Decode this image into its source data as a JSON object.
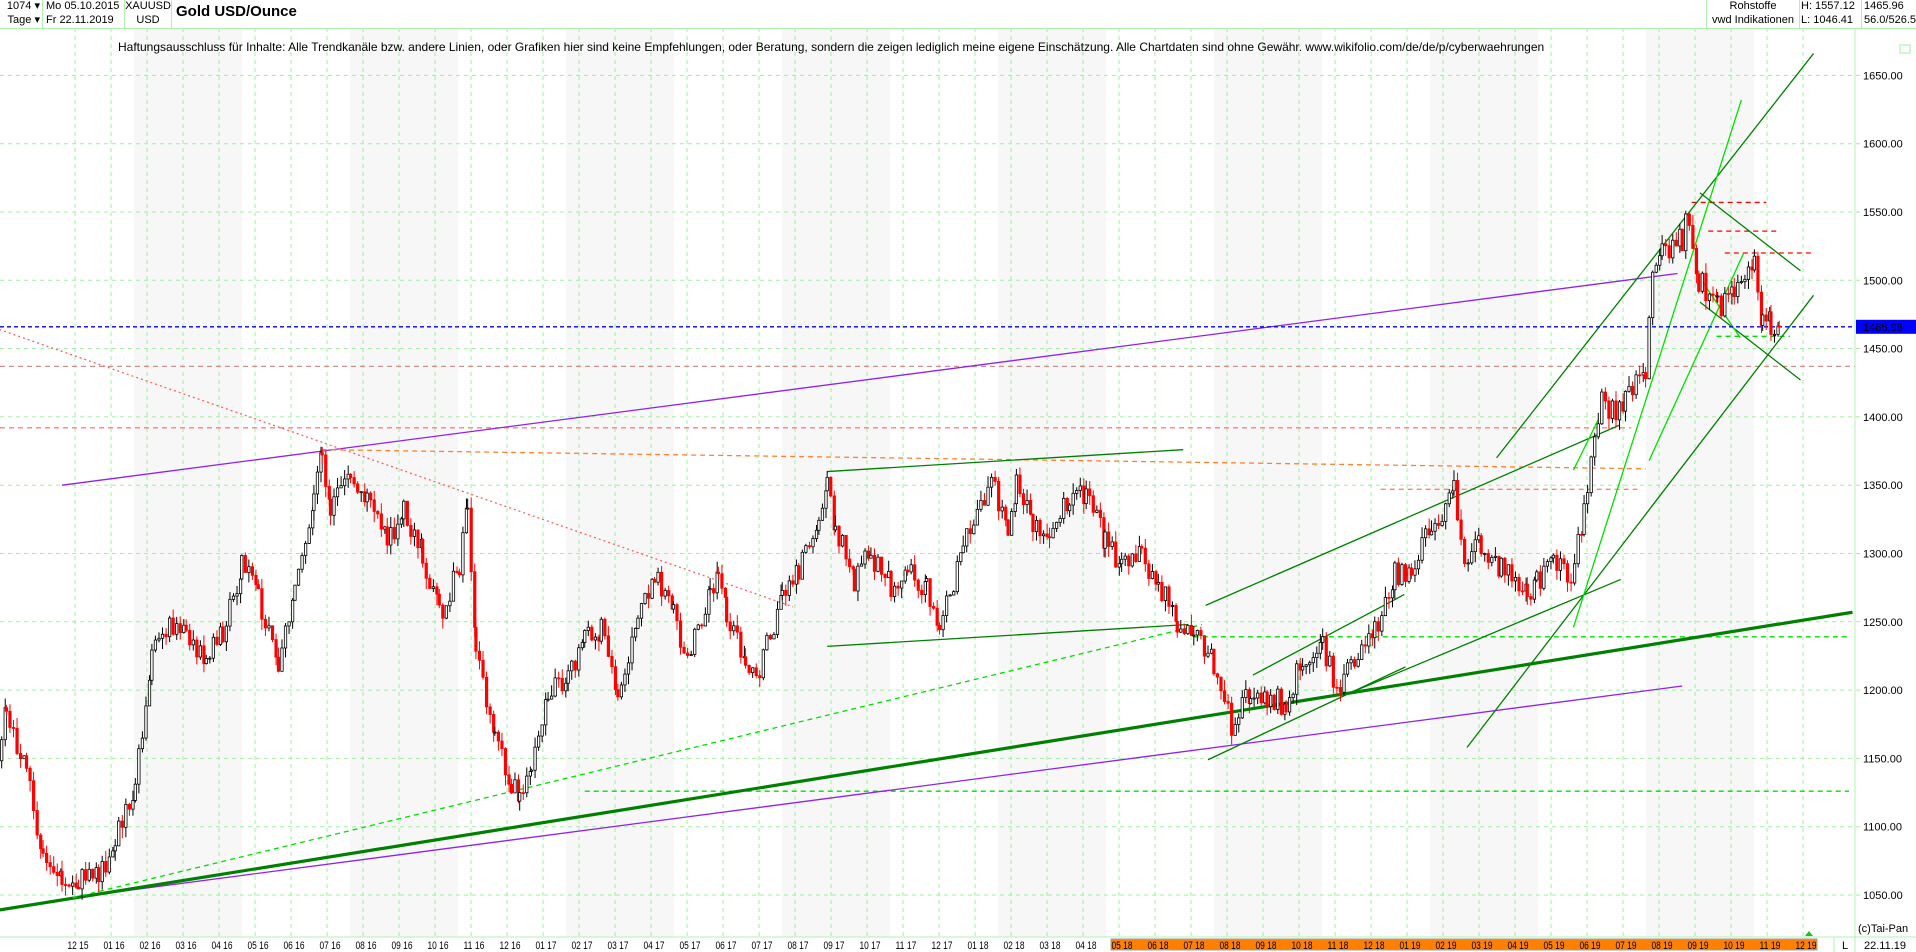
{
  "header": {
    "bars_count": "1074",
    "period": "Tage",
    "date_from": "Mo 05.10.2015",
    "date_to": "Fr 22.11.2019",
    "symbol": "XAUUSD",
    "currency": "USD",
    "title": "Gold USD/Ounce",
    "category": "Rohstoffe",
    "source": "vwd Indikationen",
    "high": "H: 1557.12",
    "low": "L: 1046.41",
    "last": "1465.96",
    "scale_info": "56.0/526.5"
  },
  "disclaimer": "Haftungsausschluss für Inhalte: Alle Trendkanäle bzw. andere Linien, oder Grafiken hier sind keine Empfehlungen, oder Beratung, sondern die zeigen lediglich meine eigene Einschätzung. Alle Chartdaten sind ohne Gewähr.  www.wikifolio.com/de/de/p/cyberwaehrungen",
  "footer": {
    "copyright": "(c)Tai-Pan",
    "scale_mode": "L",
    "last_date": "22.11.19"
  },
  "colors": {
    "up": "#000000",
    "down": "#ff0000",
    "grid": "#a0f0a0",
    "last_price_bg": "#0000ff",
    "highlight_axis": "#ff8000"
  },
  "chart_data": {
    "type": "candlestick",
    "title": "Gold USD/Ounce",
    "y_ticks": [
      "1050.00",
      "1100.00",
      "1150.00",
      "1200.00",
      "1250.00",
      "1300.00",
      "1350.00",
      "1400.00",
      "1450.00",
      "1500.00",
      "1550.00",
      "1600.00",
      "1650.00"
    ],
    "ylim": [
      1030,
      1665
    ],
    "last_price": 1465.96,
    "last_price_label": "1465.96",
    "x_ticks": [
      "12 15",
      "01 16",
      "02 16",
      "03 16",
      "04 16",
      "05 16",
      "06 16",
      "07 16",
      "08 16",
      "09 16",
      "10 16",
      "11 16",
      "12 16",
      "01 17",
      "02 17",
      "03 17",
      "04 17",
      "05 17",
      "06 17",
      "07 17",
      "08 17",
      "09 17",
      "10 17",
      "11 17",
      "12 17",
      "01 18",
      "02 18",
      "03 18",
      "04 18",
      "05 18",
      "06 18",
      "07 18",
      "08 18",
      "09 18",
      "10 18",
      "11 18",
      "12 18",
      "01 19",
      "02 19",
      "03 19",
      "04 19",
      "05 19",
      "06 19",
      "07 19",
      "08 19",
      "09 19",
      "10 19",
      "11 19",
      "12 19"
    ],
    "highlighted_x_range": [
      "05 18",
      "12 19"
    ],
    "grid": true,
    "closes": [
      [
        "2015-10-05",
        1135
      ],
      [
        "2015-10-15",
        1185
      ],
      [
        "2015-11-01",
        1140
      ],
      [
        "2015-11-15",
        1080
      ],
      [
        "2015-12-01",
        1065
      ],
      [
        "2015-12-15",
        1060
      ],
      [
        "2016-01-01",
        1065
      ],
      [
        "2016-01-15",
        1090
      ],
      [
        "2016-02-01",
        1130
      ],
      [
        "2016-02-15",
        1230
      ],
      [
        "2016-03-01",
        1250
      ],
      [
        "2016-03-15",
        1240
      ],
      [
        "2016-04-01",
        1225
      ],
      [
        "2016-04-15",
        1240
      ],
      [
        "2016-05-01",
        1290
      ],
      [
        "2016-05-15",
        1270
      ],
      [
        "2016-06-01",
        1215
      ],
      [
        "2016-06-15",
        1270
      ],
      [
        "2016-07-01",
        1340
      ],
      [
        "2016-07-08",
        1370
      ],
      [
        "2016-07-15",
        1330
      ],
      [
        "2016-08-01",
        1360
      ],
      [
        "2016-08-15",
        1340
      ],
      [
        "2016-09-01",
        1310
      ],
      [
        "2016-09-15",
        1330
      ],
      [
        "2016-10-01",
        1300
      ],
      [
        "2016-10-15",
        1255
      ],
      [
        "2016-11-01",
        1290
      ],
      [
        "2016-11-08",
        1330
      ],
      [
        "2016-11-15",
        1230
      ],
      [
        "2016-12-01",
        1170
      ],
      [
        "2016-12-15",
        1130
      ],
      [
        "2016-12-22",
        1125
      ],
      [
        "2017-01-01",
        1150
      ],
      [
        "2017-01-15",
        1200
      ],
      [
        "2017-02-01",
        1210
      ],
      [
        "2017-02-15",
        1235
      ],
      [
        "2017-03-01",
        1245
      ],
      [
        "2017-03-15",
        1200
      ],
      [
        "2017-04-01",
        1250
      ],
      [
        "2017-04-15",
        1285
      ],
      [
        "2017-05-01",
        1255
      ],
      [
        "2017-05-10",
        1220
      ],
      [
        "2017-06-01",
        1270
      ],
      [
        "2017-06-08",
        1290
      ],
      [
        "2017-06-15",
        1255
      ],
      [
        "2017-07-01",
        1225
      ],
      [
        "2017-07-10",
        1210
      ],
      [
        "2017-08-01",
        1265
      ],
      [
        "2017-08-15",
        1285
      ],
      [
        "2017-09-01",
        1325
      ],
      [
        "2017-09-08",
        1350
      ],
      [
        "2017-09-15",
        1320
      ],
      [
        "2017-10-01",
        1280
      ],
      [
        "2017-10-15",
        1300
      ],
      [
        "2017-11-01",
        1275
      ],
      [
        "2017-11-15",
        1285
      ],
      [
        "2017-12-01",
        1275
      ],
      [
        "2017-12-12",
        1242
      ],
      [
        "2018-01-01",
        1305
      ],
      [
        "2018-01-25",
        1355
      ],
      [
        "2018-02-08",
        1315
      ],
      [
        "2018-02-15",
        1350
      ],
      [
        "2018-03-01",
        1320
      ],
      [
        "2018-03-15",
        1320
      ],
      [
        "2018-04-01",
        1340
      ],
      [
        "2018-04-15",
        1345
      ],
      [
        "2018-05-01",
        1310
      ],
      [
        "2018-05-15",
        1290
      ],
      [
        "2018-06-01",
        1298
      ],
      [
        "2018-06-15",
        1280
      ],
      [
        "2018-07-01",
        1250
      ],
      [
        "2018-07-15",
        1240
      ],
      [
        "2018-08-01",
        1220
      ],
      [
        "2018-08-16",
        1175
      ],
      [
        "2018-09-01",
        1200
      ],
      [
        "2018-09-15",
        1195
      ],
      [
        "2018-10-01",
        1190
      ],
      [
        "2018-10-15",
        1225
      ],
      [
        "2018-11-01",
        1235
      ],
      [
        "2018-11-13",
        1200
      ],
      [
        "2018-12-01",
        1230
      ],
      [
        "2018-12-15",
        1245
      ],
      [
        "2019-01-01",
        1285
      ],
      [
        "2019-01-15",
        1290
      ],
      [
        "2019-02-01",
        1320
      ],
      [
        "2019-02-20",
        1345
      ],
      [
        "2019-03-01",
        1300
      ],
      [
        "2019-03-15",
        1305
      ],
      [
        "2019-04-01",
        1290
      ],
      [
        "2019-04-23",
        1270
      ],
      [
        "2019-05-01",
        1280
      ],
      [
        "2019-05-15",
        1295
      ],
      [
        "2019-05-30",
        1285
      ],
      [
        "2019-06-10",
        1330
      ],
      [
        "2019-06-25",
        1410
      ],
      [
        "2019-07-01",
        1400
      ],
      [
        "2019-07-15",
        1415
      ],
      [
        "2019-08-01",
        1430
      ],
      [
        "2019-08-07",
        1500
      ],
      [
        "2019-08-15",
        1520
      ],
      [
        "2019-09-01",
        1530
      ],
      [
        "2019-09-04",
        1550
      ],
      [
        "2019-09-15",
        1500
      ],
      [
        "2019-10-01",
        1480
      ],
      [
        "2019-10-15",
        1490
      ],
      [
        "2019-11-01",
        1510
      ],
      [
        "2019-11-08",
        1470
      ],
      [
        "2019-11-15",
        1468
      ],
      [
        "2019-11-22",
        1465.96
      ]
    ],
    "trendlines": [
      {
        "from": [
          "2015-12-01",
          1350
        ],
        "to": [
          "2019-08-28",
          1505
        ],
        "color": "#9020f0",
        "style": "solid"
      },
      {
        "from": [
          "2015-12-10",
          1048
        ],
        "to": [
          "2019-09-01",
          1203
        ],
        "color": "#9020f0",
        "style": "solid"
      },
      {
        "from": [
          "2015-10-09",
          1039
        ],
        "to": [
          "2020-01-23",
          1257
        ],
        "color": "#008000",
        "style": "solid",
        "thick": true
      },
      {
        "from": [
          "2015-12-10",
          1048
        ],
        "to": [
          "2018-07-22",
          1248
        ],
        "color": "#00e000",
        "style": "dashed"
      },
      {
        "from": [
          "2015-10-09",
          1464
        ],
        "to": [
          "2017-08-10",
          1261
        ],
        "color": "#ff6060",
        "style": "dotted"
      },
      {
        "from": [
          "2016-07-08",
          1376
        ],
        "to": [
          "2019-08-01",
          1362
        ],
        "color": "#ff8030",
        "style": "dashed"
      },
      {
        "from": [
          "2017-09-08",
          1360
        ],
        "to": [
          "2018-07-06",
          1376
        ],
        "color": "#008000",
        "style": "solid"
      },
      {
        "from": [
          "2017-09-08",
          1232
        ],
        "to": [
          "2018-07-10",
          1248
        ],
        "color": "#008000",
        "style": "solid"
      },
      {
        "from": [
          "2018-07-25",
          1262
        ],
        "to": [
          "2019-07-10",
          1394
        ],
        "color": "#008000",
        "style": "solid"
      },
      {
        "from": [
          "2018-07-27",
          1149
        ],
        "to": [
          "2019-01-10",
          1217
        ],
        "color": "#008000",
        "style": "solid"
      },
      {
        "from": [
          "2018-09-03",
          1211
        ],
        "to": [
          "2019-01-09",
          1270
        ],
        "color": "#008000",
        "style": "solid"
      },
      {
        "from": [
          "2018-11-27",
          1199
        ],
        "to": [
          "2019-07-11",
          1281
        ],
        "color": "#008000",
        "style": "solid"
      },
      {
        "from": [
          "2019-03-28",
          1370
        ],
        "to": [
          "2019-12-21",
          1666
        ],
        "color": "#008000",
        "style": "solid"
      },
      {
        "from": [
          "2019-03-03",
          1158
        ],
        "to": [
          "2019-12-21",
          1489
        ],
        "color": "#008000",
        "style": "solid"
      },
      {
        "from": [
          "2019-06-01",
          1246
        ],
        "to": [
          "2019-10-21",
          1632
        ],
        "color": "#00e000",
        "style": "solid"
      },
      {
        "from": [
          "2019-08-04",
          1368
        ],
        "to": [
          "2019-10-23",
          1520
        ],
        "color": "#00e000",
        "style": "solid"
      },
      {
        "from": [
          "2019-06-01",
          1361
        ],
        "to": [
          "2019-06-22",
          1398
        ],
        "color": "#00e000",
        "style": "solid"
      },
      {
        "from": [
          "2019-09-16",
          1564
        ],
        "to": [
          "2019-12-10",
          1507
        ],
        "color": "#008000",
        "style": "solid"
      },
      {
        "from": [
          "2019-09-16",
          1484
        ],
        "to": [
          "2019-12-10",
          1427
        ],
        "color": "#008000",
        "style": "solid"
      },
      {
        "from": [
          "2019-09-18",
          1499
        ],
        "to": [
          "2019-10-20",
          1458
        ],
        "color": "#00e000",
        "style": "solid"
      }
    ],
    "hlines": [
      {
        "price": 1392,
        "from": "2015-10-01",
        "to": "2019-07-20",
        "color": "#ff8080",
        "style": "dashed"
      },
      {
        "price": 1437,
        "from": "2015-10-01",
        "to": "2020-01-25",
        "color": "#d09090",
        "style": "dashed"
      },
      {
        "price": 1347,
        "from": "2018-12-20",
        "to": "2019-07-25",
        "color": "#ff8080",
        "style": "dashed"
      },
      {
        "price": 1239,
        "from": "2018-07-15",
        "to": "2020-01-20",
        "color": "#00e000",
        "style": "dashed"
      },
      {
        "price": 1126,
        "from": "2017-02-15",
        "to": "2020-01-20",
        "color": "#00e000",
        "style": "dashed"
      },
      {
        "price": 1557,
        "from": "2019-09-09",
        "to": "2019-11-11",
        "color": "#ff0000",
        "style": "dashed"
      },
      {
        "price": 1536,
        "from": "2019-09-23",
        "to": "2019-11-23",
        "color": "#ff0000",
        "style": "dashed"
      },
      {
        "price": 1520,
        "from": "2019-10-07",
        "to": "2019-12-21",
        "color": "#ff0000",
        "style": "dashed"
      },
      {
        "price": 1459,
        "from": "2019-09-30",
        "to": "2019-12-01",
        "color": "#00e000",
        "style": "dashed"
      }
    ]
  }
}
